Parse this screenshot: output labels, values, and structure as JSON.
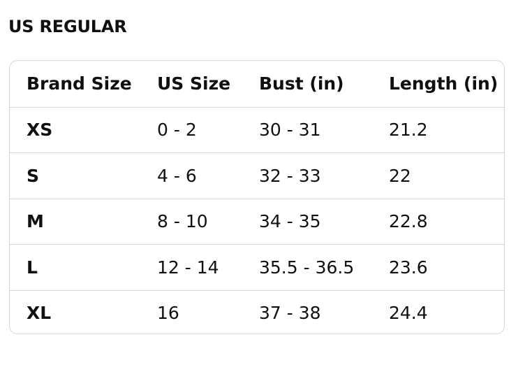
{
  "title": "US REGULAR",
  "table": {
    "header": [
      "Brand Size",
      "US Size",
      "Bust (in)",
      "Length (in)"
    ],
    "rows": [
      [
        "XS",
        "0 - 2",
        "30 - 31",
        "21.2"
      ],
      [
        "S",
        "4 - 6",
        "32 - 33",
        "22"
      ],
      [
        "M",
        "8 - 10",
        "34 - 35",
        "22.8"
      ],
      [
        "L",
        "12 - 14",
        "35.5 - 36.5",
        "23.6"
      ],
      [
        "XL",
        "16",
        "37 - 38",
        "24.4"
      ]
    ]
  }
}
